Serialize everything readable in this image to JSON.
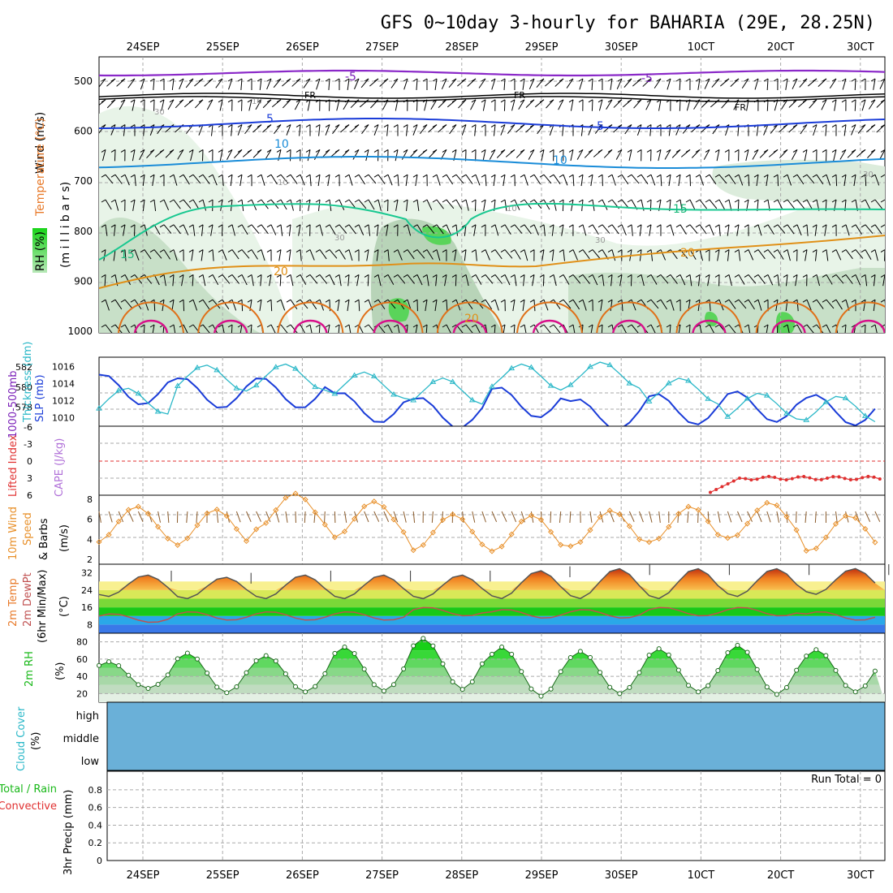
{
  "title": "GFS 0~10day 3-hourly for BAHARIA (29E, 28.25N)",
  "dates": [
    "24SEP",
    "25SEP",
    "26SEP",
    "27SEP",
    "28SEP",
    "29SEP",
    "30SEP",
    "1OCT",
    "2OCT",
    "3OCT"
  ],
  "date_labels": [
    "24SEP",
    "25SEP",
    "26SEP",
    "27SEP",
    "28SEP",
    "29SEP",
    "30SEP",
    "10CT",
    "20CT",
    "30CT"
  ],
  "panels": {
    "upper": {
      "label_wind": "Wind (m/s)",
      "label_temp": "Temperature (°C)",
      "label_rh": "RH (%)",
      "label_mb": "(m i l l i b a r s)",
      "levels": [
        "500",
        "600",
        "700",
        "800",
        "900",
        "1000"
      ],
      "contour_labels": {
        "t1": "-5",
        "t2": "-5",
        "fr": "FR",
        "t5a": "5",
        "t5b": "5",
        "t10a": "10",
        "t10b": "10",
        "t15a": "15",
        "t15b": "15",
        "t20a": "20",
        "t20b": "20",
        "t30a": "30",
        "t30b": "30",
        "t30c": "30",
        "t30d": "30",
        "t10g": "10",
        "t10h": "10",
        "t10i": "10",
        "t20g": "20"
      }
    },
    "thickness": {
      "label_a": "1000-500mb",
      "label_b": "Thickness (dm)",
      "label_c": "SLP (mb)",
      "ticks_left": [
        "582",
        "580",
        "578"
      ],
      "ticks_right": [
        "1016",
        "1014",
        "1012",
        "1010"
      ]
    },
    "cape": {
      "label_a": "Lifted Index",
      "label_b": "CAPE (J/kg)",
      "ticks": [
        "-6",
        "-3",
        "0",
        "3",
        "6"
      ]
    },
    "wind10": {
      "label_a": "10m Wind",
      "label_b": "Speed",
      "label_c": "& Barbs",
      "label_d": "(m/s)",
      "ticks": [
        "8",
        "6",
        "4",
        "2"
      ]
    },
    "temp2m": {
      "label_a": "2m Temp",
      "label_b": "2m DewPt",
      "label_c": "(6hr Min/Max)",
      "label_d": "(°C)",
      "ticks": [
        "32",
        "24",
        "16",
        "8"
      ]
    },
    "rh2m": {
      "label_a": "2m RH",
      "label_b": "(%)",
      "ticks": [
        "80",
        "60",
        "40",
        "20"
      ]
    },
    "cloud": {
      "label_a": "Cloud Cover",
      "label_b": "(%)",
      "rows": [
        "high",
        "middle",
        "low"
      ]
    },
    "precip": {
      "label_a": "3hr Precip (mm)",
      "label_b": "Total / Rain",
      "label_c": "Convective",
      "ticks": [
        "0.8",
        "0.6",
        "0.4",
        "0.2",
        "0"
      ],
      "run_total": "Run Total = 0"
    }
  },
  "colors": {
    "slp": "#1a3cd8",
    "thickness": "#2bb8c8",
    "wind_speed": "#e8902a",
    "li": "#e03030",
    "cloud": "#6ab0d8",
    "rh_fill": "#18d818",
    "temp_warm": "#e8501a",
    "temp_band": "#f0e070",
    "dew": "#c05050"
  },
  "chart_data": [
    {
      "type": "line",
      "title": "1000-500mb Thickness (dm) / SLP (mb)",
      "x": [
        "24SEP",
        "25SEP",
        "26SEP",
        "27SEP",
        "28SEP",
        "29SEP",
        "30SEP",
        "1OCT",
        "2OCT",
        "3OCT"
      ],
      "series": [
        {
          "name": "SLP (mb)",
          "values": [
            1013.3,
            1012.9,
            1012.9,
            1011.2,
            1010.6,
            1011.8,
            1010.4,
            1011.0,
            1011.3,
            1010.9
          ]
        },
        {
          "name": "1000-500mb Thickness (dm)",
          "values": [
            578.6,
            580.9,
            581.0,
            580.2,
            579.6,
            581.0,
            581.2,
            579.6,
            578.1,
            577.8
          ]
        }
      ]
    },
    {
      "type": "line",
      "title": "10m Wind Speed (m/s)",
      "x": [
        "24SEP",
        "25SEP",
        "26SEP",
        "27SEP",
        "28SEP",
        "29SEP",
        "30SEP",
        "1OCT",
        "2OCT",
        "3OCT"
      ],
      "series": [
        {
          "name": "10m Wind Speed",
          "values": [
            5.5,
            5.2,
            6.8,
            6.0,
            4.7,
            4.6,
            5.1,
            5.5,
            5.9,
            4.6
          ]
        }
      ],
      "ylim": [
        2,
        8
      ]
    },
    {
      "type": "area",
      "title": "2m Temp / 2m DewPt (°C)",
      "x": [
        "24SEP",
        "25SEP",
        "26SEP",
        "27SEP",
        "28SEP",
        "29SEP",
        "30SEP",
        "1OCT",
        "2OCT",
        "3OCT"
      ],
      "series": [
        {
          "name": "2m Temp max",
          "values": [
            31,
            30,
            31,
            31,
            31,
            33,
            34,
            34,
            34,
            34
          ]
        },
        {
          "name": "2m Temp min",
          "values": [
            21,
            20,
            20,
            20,
            20,
            20,
            20,
            20,
            21,
            22
          ]
        },
        {
          "name": "2m DewPt",
          "values": [
            11,
            12,
            12,
            12,
            14,
            13,
            13,
            14,
            14,
            12
          ]
        }
      ],
      "ylim": [
        4,
        36
      ]
    },
    {
      "type": "area",
      "title": "2m RH (%)",
      "x": [
        "24SEP",
        "25SEP",
        "26SEP",
        "27SEP",
        "28SEP",
        "29SEP",
        "30SEP",
        "1OCT",
        "2OCT",
        "3OCT"
      ],
      "series": [
        {
          "name": "2m RH max",
          "values": [
            57,
            67,
            64,
            74,
            84,
            74,
            69,
            72,
            76,
            71
          ]
        },
        {
          "name": "2m RH min",
          "values": [
            26,
            21,
            22,
            23,
            25,
            17,
            20,
            22,
            19,
            22
          ]
        }
      ],
      "ylim": [
        10,
        90
      ]
    },
    {
      "type": "line",
      "title": "Lifted Index",
      "series": [
        {
          "name": "Lifted Index",
          "values": [
            3.2,
            2.9,
            3.1,
            3.0,
            2.8
          ]
        }
      ],
      "ylim": [
        -6,
        6
      ]
    }
  ]
}
